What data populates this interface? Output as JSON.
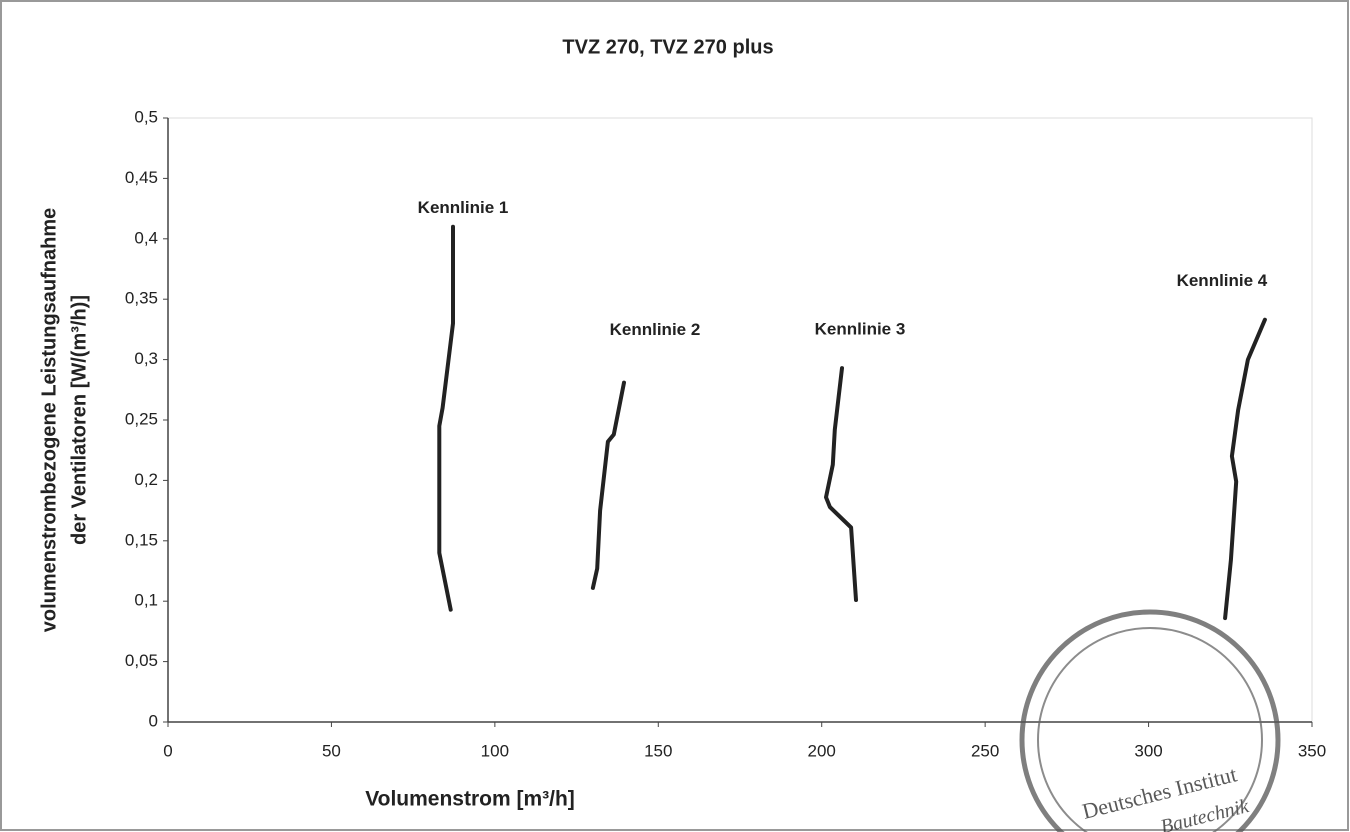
{
  "chart_data": {
    "type": "line",
    "title": "TVZ 270, TVZ 270 plus",
    "xlabel": "Volumenstrom [m³/h]",
    "ylabel": [
      "volumenstrombezogene Leistungsaufnahme",
      "der Ventilatoren [W/(m³/h)]"
    ],
    "xlim": [
      0,
      350
    ],
    "xticks": [
      0,
      50,
      100,
      150,
      200,
      250,
      300,
      350
    ],
    "ylim": [
      0,
      0.5
    ],
    "yticks": [
      0,
      {
        "value": 0.05,
        "label": "0,05"
      },
      {
        "value": 0.1,
        "label": "0,1"
      },
      {
        "value": 0.15,
        "label": "0,15"
      },
      {
        "value": 0.2,
        "label": "0,2"
      },
      {
        "value": 0.25,
        "label": "0,25"
      },
      {
        "value": 0.3,
        "label": "0,3"
      },
      {
        "value": 0.35,
        "label": "0,35"
      },
      {
        "value": 0.4,
        "label": "0,4"
      },
      {
        "value": 0.45,
        "label": "0,45"
      },
      {
        "value": 0.5,
        "label": "0,5"
      }
    ],
    "grid": false,
    "series": [
      {
        "name": "Kennlinie 1",
        "color": "#222222",
        "x": [
          87.2,
          87.2,
          84,
          83,
          83,
          86.5
        ],
        "values": [
          0.41,
          0.33,
          0.26,
          0.245,
          0.14,
          0.093
        ]
      },
      {
        "name": "Kennlinie 2",
        "color": "#222222",
        "x": [
          139.5,
          136.4,
          134.6,
          132.2,
          131.3,
          130
        ],
        "values": [
          0.281,
          0.238,
          0.232,
          0.175,
          0.127,
          0.111
        ]
      },
      {
        "name": "Kennlinie 3",
        "color": "#222222",
        "x": [
          206.2,
          204,
          203.4,
          201.3,
          202.5,
          209,
          210.5
        ],
        "values": [
          0.293,
          0.242,
          0.213,
          0.186,
          0.178,
          0.161,
          0.101
        ]
      },
      {
        "name": "Kennlinie 4",
        "color": "#222222",
        "x": [
          335.6,
          330.4,
          327.4,
          325.5,
          326.8,
          325.2,
          323.4
        ],
        "values": [
          0.333,
          0.3,
          0.258,
          0.22,
          0.199,
          0.134,
          0.086
        ]
      }
    ],
    "stamp": [
      "Deutsches Institut",
      "Bautechnik"
    ]
  }
}
